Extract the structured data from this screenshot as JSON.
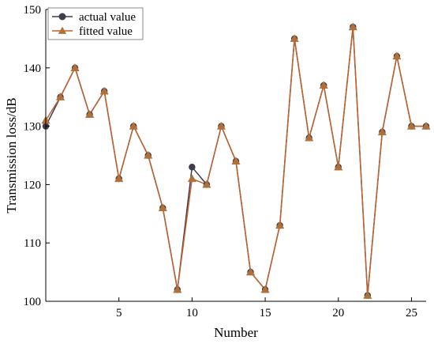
{
  "chart_data": {
    "type": "line",
    "title": "",
    "xlabel": "Number",
    "ylabel": "Transmission loss/dB",
    "xlim": [
      0,
      26
    ],
    "ylim": [
      100,
      150
    ],
    "xticks": [
      "5",
      "10",
      "15",
      "20",
      "25"
    ],
    "yticks": [
      "100",
      "110",
      "120",
      "130",
      "140",
      "150"
    ],
    "grid": false,
    "legend": "top-left",
    "x": [
      0,
      1,
      2,
      3,
      4,
      5,
      6,
      7,
      8,
      9,
      10,
      11,
      12,
      13,
      14,
      15,
      16,
      17,
      18,
      19,
      20,
      21,
      22,
      23,
      24,
      25,
      26
    ],
    "series": [
      {
        "name": "actual value",
        "color": "#3d3d4d",
        "marker": "circle",
        "values": [
          130,
          135,
          140,
          132,
          136,
          121,
          130,
          125,
          116,
          102,
          123,
          120,
          130,
          124,
          105,
          102,
          113,
          145,
          128,
          137,
          123,
          147,
          101,
          129,
          142,
          130,
          130
        ]
      },
      {
        "name": "fitted value",
        "color": "#c0622f",
        "marker": "triangle",
        "values": [
          131,
          135,
          140,
          132,
          136,
          121,
          130,
          125,
          116,
          102,
          121,
          120,
          130,
          124,
          105,
          102,
          113,
          145,
          128,
          137,
          123,
          147,
          101,
          129,
          142,
          130,
          130
        ]
      }
    ]
  }
}
